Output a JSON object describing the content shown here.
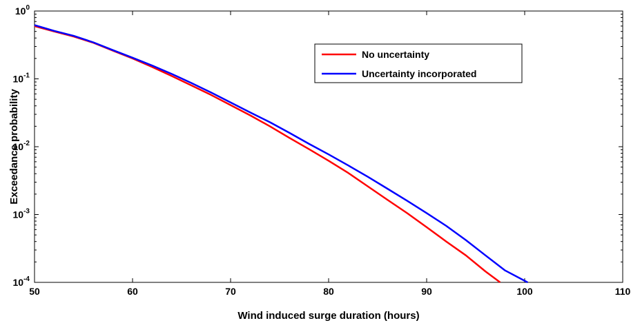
{
  "chart_data": {
    "type": "line",
    "title": "",
    "xlabel": "Wind induced surge duration (hours)",
    "ylabel": "Exceedance probability",
    "xlim": [
      50,
      110
    ],
    "ylim": [
      0.0001,
      1
    ],
    "yscale": "log",
    "grid": false,
    "legend_position": "top-right",
    "x_ticks": [
      "50",
      "60",
      "70",
      "80",
      "90",
      "100",
      "110"
    ],
    "y_ticks": [
      {
        "base": "10",
        "exp": "0"
      },
      {
        "base": "10",
        "exp": "-1"
      },
      {
        "base": "10",
        "exp": "-2"
      },
      {
        "base": "10",
        "exp": "-3"
      },
      {
        "base": "10",
        "exp": "-4"
      }
    ],
    "series": [
      {
        "name": "No uncertainty",
        "color": "#ff0000",
        "points": [
          [
            50,
            0.6
          ],
          [
            52,
            0.5
          ],
          [
            54,
            0.42
          ],
          [
            56,
            0.34
          ],
          [
            58,
            0.26
          ],
          [
            60,
            0.2
          ],
          [
            62,
            0.15
          ],
          [
            64,
            0.11
          ],
          [
            66,
            0.08
          ],
          [
            68,
            0.058
          ],
          [
            70,
            0.041
          ],
          [
            72,
            0.029
          ],
          [
            74,
            0.02
          ],
          [
            76,
            0.0135
          ],
          [
            78,
            0.0092
          ],
          [
            80,
            0.0062
          ],
          [
            82,
            0.0041
          ],
          [
            84,
            0.0026
          ],
          [
            86,
            0.00165
          ],
          [
            88,
            0.00105
          ],
          [
            90,
            0.00065
          ],
          [
            92,
            0.0004
          ],
          [
            94,
            0.00025
          ],
          [
            96,
            0.000145
          ],
          [
            97.5,
            0.0001
          ]
        ]
      },
      {
        "name": "Uncertainty incorporated",
        "color": "#0000ff",
        "points": [
          [
            50,
            0.62
          ],
          [
            52,
            0.51
          ],
          [
            54,
            0.43
          ],
          [
            56,
            0.345
          ],
          [
            58,
            0.265
          ],
          [
            60,
            0.205
          ],
          [
            62,
            0.157
          ],
          [
            64,
            0.118
          ],
          [
            66,
            0.087
          ],
          [
            68,
            0.063
          ],
          [
            70,
            0.045
          ],
          [
            72,
            0.032
          ],
          [
            74,
            0.023
          ],
          [
            76,
            0.016
          ],
          [
            78,
            0.011
          ],
          [
            80,
            0.0077
          ],
          [
            82,
            0.0053
          ],
          [
            84,
            0.0036
          ],
          [
            86,
            0.0024
          ],
          [
            88,
            0.0016
          ],
          [
            90,
            0.00105
          ],
          [
            92,
            0.00068
          ],
          [
            94,
            0.00042
          ],
          [
            96,
            0.00025
          ],
          [
            98,
            0.00015
          ],
          [
            100.3,
            0.0001
          ]
        ]
      }
    ]
  }
}
